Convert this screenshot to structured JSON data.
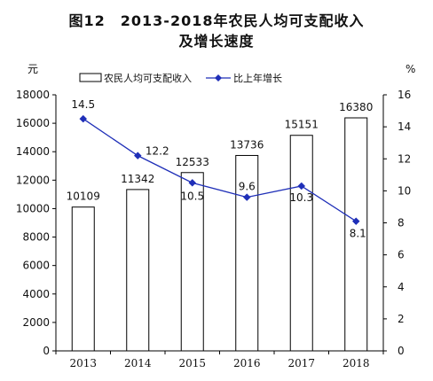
{
  "title_line1": "图12　2013-2018年农民人均可支配收入",
  "title_line2": "及增长速度",
  "chart_data": {
    "type": "bar",
    "categories": [
      "2013",
      "2014",
      "2015",
      "2016",
      "2017",
      "2018"
    ],
    "series": [
      {
        "name": "农民人均可支配收入",
        "type": "bar",
        "axis": "left",
        "values": [
          10109,
          11342,
          12533,
          13736,
          15151,
          16380
        ],
        "labels": [
          "10109",
          "11342",
          "12533",
          "13736",
          "15151",
          "16380"
        ]
      },
      {
        "name": "比上年增长",
        "type": "line",
        "axis": "right",
        "values": [
          14.5,
          12.2,
          10.5,
          9.6,
          10.3,
          8.1
        ],
        "labels": [
          "14.5",
          "12.2",
          "10.5",
          "9.6",
          "10.3",
          "8.1"
        ],
        "color": "#1f2fb8"
      }
    ],
    "y_left": {
      "unit": "元",
      "range": [
        0,
        18000
      ],
      "ticks": [
        "0",
        "2000",
        "4000",
        "6000",
        "8000",
        "10000",
        "12000",
        "14000",
        "16000",
        "18000"
      ]
    },
    "y_right": {
      "unit": "%",
      "range": [
        0,
        16
      ],
      "ticks": [
        "0",
        "2",
        "4",
        "6",
        "8",
        "10",
        "12",
        "14",
        "16"
      ]
    },
    "legend_position": "top",
    "grid": false
  }
}
